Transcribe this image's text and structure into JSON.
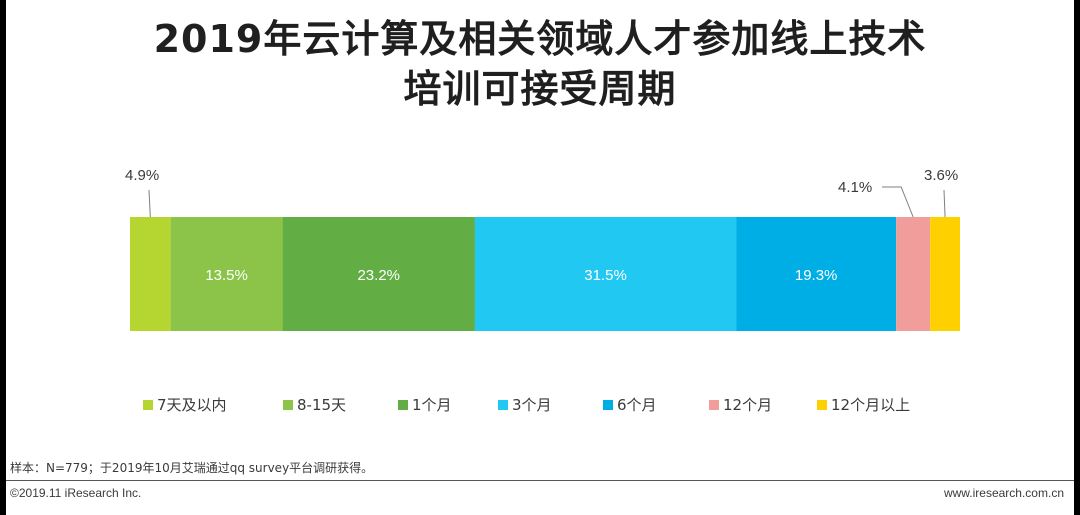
{
  "title": {
    "line1": "2019年云计算及相关领域人才参加线上技术",
    "line2": "培训可接受周期"
  },
  "chart_data": {
    "type": "bar",
    "orientation": "horizontal-stacked-100",
    "series": [
      {
        "name": "7天及以内",
        "value": 4.9,
        "label": "4.9%",
        "color": "#b5d531",
        "label_position": "above"
      },
      {
        "name": "8-15天",
        "value": 13.5,
        "label": "13.5%",
        "color": "#8cc44a",
        "label_position": "inside"
      },
      {
        "name": "1个月",
        "value": 23.2,
        "label": "23.2%",
        "color": "#63ae44",
        "label_position": "inside"
      },
      {
        "name": "3个月",
        "value": 31.5,
        "label": "31.5%",
        "color": "#21c8f2",
        "label_position": "inside"
      },
      {
        "name": "6个月",
        "value": 19.3,
        "label": "19.3%",
        "color": "#00aee6",
        "label_position": "inside"
      },
      {
        "name": "12个月",
        "value": 4.1,
        "label": "4.1%",
        "color": "#f19d9b",
        "label_position": "above"
      },
      {
        "name": "12个月以上",
        "value": 3.6,
        "label": "3.6%",
        "color": "#ffd000",
        "label_position": "above"
      }
    ],
    "legend_position": "bottom"
  },
  "footer": {
    "note": "样本：N=779；于2019年10月艾瑞通过qq survey平台调研获得。",
    "copyright": "©2019.11 iResearch Inc.",
    "website": "www.iresearch.com.cn"
  }
}
